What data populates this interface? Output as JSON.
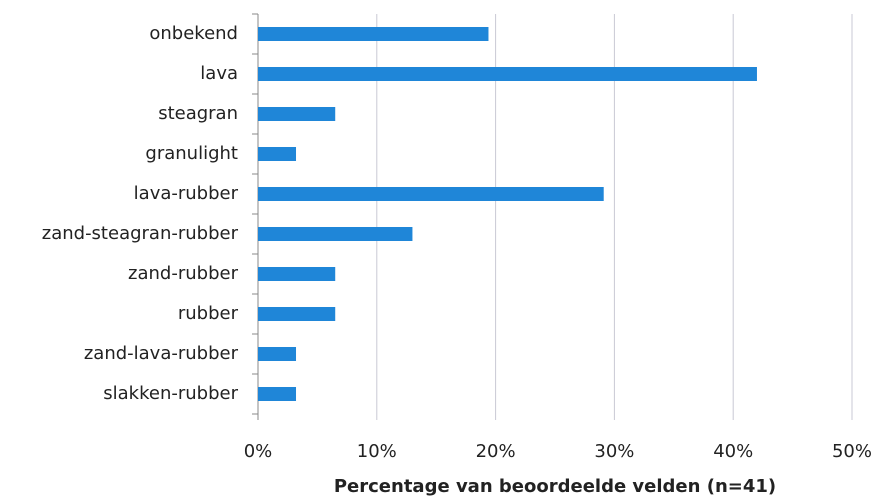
{
  "chart_data": {
    "type": "bar",
    "orientation": "horizontal",
    "x_label": "Percentage van beoordeelde velden (n=41)",
    "categories": [
      "onbekend",
      "lava",
      "steagran",
      "granulight",
      "lava-rubber",
      "zand-steagran-rubber",
      "zand-rubber",
      "rubber",
      "zand-lava-rubber",
      "slakken-rubber"
    ],
    "values": [
      19.4,
      42.0,
      6.5,
      3.2,
      29.1,
      13.0,
      6.5,
      6.5,
      3.2,
      3.2
    ],
    "color": "#1f86d8",
    "xlim": [
      0,
      50
    ],
    "xticks": [
      {
        "value": 0,
        "label": "0%"
      },
      {
        "value": 10,
        "label": "10%"
      },
      {
        "value": 20,
        "label": "20%"
      },
      {
        "value": 30,
        "label": "30%"
      },
      {
        "value": 40,
        "label": "40%"
      },
      {
        "value": 50,
        "label": "50%"
      }
    ],
    "grid": true
  }
}
